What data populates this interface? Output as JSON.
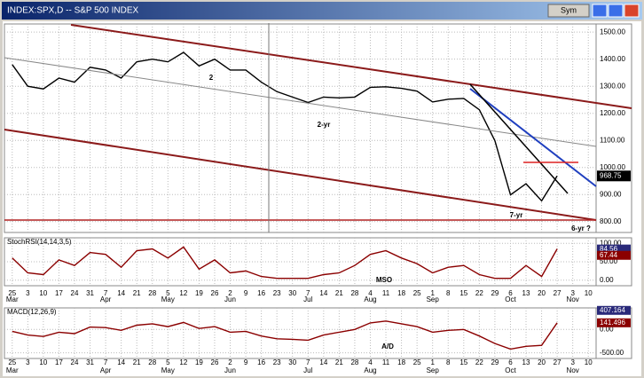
{
  "window": {
    "title": "INDEX:SPX,D -- S&P 500 INDEX",
    "button": "Sym"
  },
  "chart_data": [
    {
      "type": "line",
      "color": "#000000",
      "categories": [
        "25",
        "3",
        "10",
        "17",
        "24",
        "31",
        "7",
        "14",
        "21",
        "28",
        "5",
        "12",
        "19",
        "26",
        "2",
        "9",
        "16",
        "23",
        "30",
        "7",
        "14",
        "21",
        "28",
        "4",
        "11",
        "18",
        "25",
        "1",
        "8",
        "15",
        "22",
        "29",
        "6",
        "13",
        "20",
        "27",
        "3",
        "10"
      ],
      "months": [
        "Mar",
        "",
        "",
        "",
        "",
        "",
        "Apr",
        "",
        "",
        "",
        "May",
        "",
        "",
        "",
        "Jun",
        "",
        "",
        "",
        "",
        "Jul",
        "",
        "",
        "",
        "Aug",
        "",
        "",
        "",
        "Sep",
        "",
        "",
        "",
        "",
        "Oct",
        "",
        "",
        "",
        "Nov",
        ""
      ],
      "values": [
        1380,
        1300,
        1290,
        1330,
        1315,
        1370,
        1360,
        1330,
        1390,
        1400,
        1390,
        1425,
        1375,
        1400,
        1360,
        1360,
        1315,
        1280,
        1260,
        1240,
        1260,
        1257,
        1260,
        1296,
        1298,
        1292,
        1282,
        1242,
        1252,
        1255,
        1213,
        1099,
        899,
        940,
        877,
        969,
        null,
        null
      ],
      "last_value": 968.75,
      "ylim": [
        760,
        1530
      ],
      "yticks": [
        {
          "value": 800,
          "label": "800.00"
        },
        {
          "value": 900,
          "label": "900.00"
        },
        {
          "value": 1000,
          "label": "1000.00"
        },
        {
          "value": 1100,
          "label": "1100.00"
        },
        {
          "value": 1200,
          "label": "1200.00"
        },
        {
          "value": 1300,
          "label": "1300.00"
        },
        {
          "value": 1400,
          "label": "1400.00"
        },
        {
          "value": 1500,
          "label": "1500.00"
        }
      ],
      "annotations": [
        "2",
        "2-yr",
        "7-yr",
        "6-yr ?"
      ],
      "grid": true
    },
    {
      "type": "line",
      "title": "StochRSI(14,14,3,5)",
      "color": "#8b0000",
      "values": [
        60,
        20,
        15,
        55,
        40,
        75,
        70,
        35,
        80,
        85,
        60,
        90,
        30,
        55,
        20,
        25,
        10,
        5,
        5,
        5,
        15,
        20,
        40,
        70,
        80,
        60,
        45,
        20,
        35,
        40,
        15,
        5,
        5,
        40,
        10,
        85,
        null,
        null
      ],
      "last_labels": [
        84.56,
        67.44
      ],
      "ylim": [
        -15,
        115
      ],
      "yticks": [
        {
          "value": 0,
          "label": "0.00"
        },
        {
          "value": 50,
          "label": "50.00"
        },
        {
          "value": 100,
          "label": "100.00"
        }
      ],
      "annotations": [
        "MSO"
      ]
    },
    {
      "type": "line",
      "title": "MACD(12,26,9)",
      "color": "#8b0000",
      "values": [
        -40,
        -120,
        -150,
        -60,
        -90,
        50,
        40,
        -20,
        90,
        120,
        60,
        150,
        20,
        60,
        -60,
        -40,
        -140,
        -200,
        -210,
        -230,
        -120,
        -60,
        0,
        140,
        180,
        120,
        60,
        -60,
        -20,
        0,
        -140,
        -300,
        -420,
        -360,
        -340,
        141.496,
        null,
        null
      ],
      "last_labels": [
        407.164,
        141.496
      ],
      "ylim": [
        -620,
        460
      ],
      "yticks": [
        {
          "value": -500,
          "label": "-500.00"
        },
        {
          "value": 0,
          "label": "0.00"
        }
      ],
      "annotations": [
        "A/D"
      ]
    }
  ]
}
